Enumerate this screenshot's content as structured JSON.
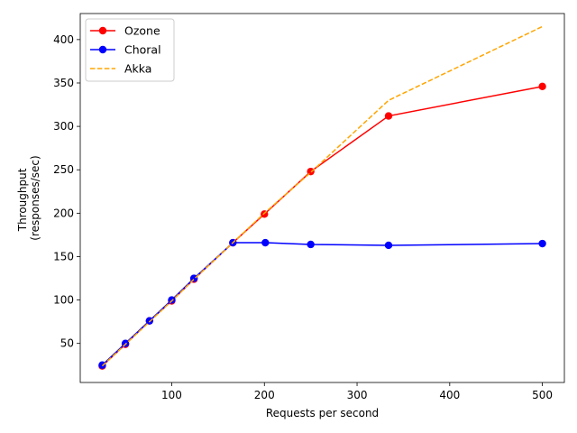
{
  "chart_data": {
    "type": "line",
    "xlabel": "Requests per second",
    "ylabel": [
      "Throughput",
      "(responses/sec)"
    ],
    "xlim": [
      1.25,
      523.75
    ],
    "ylim": [
      5.0,
      430.0
    ],
    "xticks": [
      100,
      200,
      300,
      400,
      500
    ],
    "yticks": [
      50,
      100,
      150,
      200,
      250,
      300,
      350,
      400
    ],
    "grid": false,
    "legend_position": "top-left",
    "series": [
      {
        "name": "Ozone",
        "color": "#ff0000",
        "style": "solid",
        "marker": "circle",
        "x": [
          25,
          50,
          76,
          100,
          124,
          166,
          200,
          250,
          334,
          500
        ],
        "y": [
          24,
          49,
          76,
          99,
          124,
          166,
          199,
          248,
          312,
          346
        ]
      },
      {
        "name": "Choral",
        "color": "#0000ff",
        "style": "solid",
        "marker": "circle",
        "x": [
          25,
          50,
          76,
          100,
          124,
          166,
          201,
          250,
          334,
          500
        ],
        "y": [
          25,
          50,
          76,
          100,
          125,
          166,
          166,
          164,
          163,
          165
        ]
      },
      {
        "name": "Akka",
        "color": "#ffa500",
        "style": "dashed",
        "marker": "none",
        "x": [
          25,
          50,
          76,
          100,
          124,
          166,
          200,
          250,
          334,
          500
        ],
        "y": [
          24,
          49,
          75,
          99,
          124,
          166,
          200,
          247,
          330,
          415
        ]
      }
    ]
  }
}
